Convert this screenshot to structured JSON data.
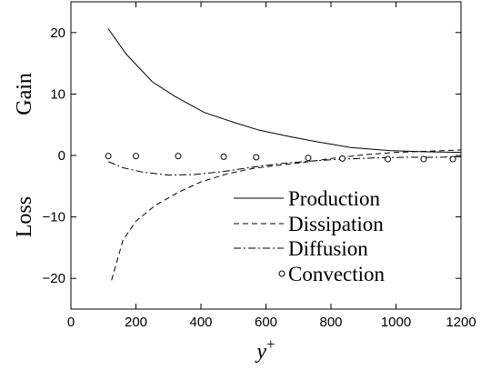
{
  "chart_data": {
    "type": "line",
    "xlabel": "y",
    "xlabel_sup": "+",
    "ylabel_top": "Gain",
    "ylabel_bottom": "Loss",
    "xlim": [
      0,
      1200
    ],
    "ylim": [
      -25,
      25
    ],
    "xticks": [
      0,
      200,
      400,
      600,
      800,
      1000,
      1200
    ],
    "xtick_labels": [
      "0",
      "200",
      "400",
      "600",
      "800",
      "1000",
      "1200"
    ],
    "yticks": [
      -20,
      -10,
      0,
      10,
      20
    ],
    "ytick_labels": [
      "−20",
      "−10",
      "0",
      "10",
      "20"
    ],
    "grid": false,
    "legend_position": "bottom-right",
    "series": [
      {
        "name": "Production",
        "style": "solid",
        "x": [
          115,
          170,
          250,
          320,
          410,
          500,
          580,
          680,
          760,
          860,
          980,
          1080,
          1200
        ],
        "y": [
          20.6,
          16.5,
          12.0,
          9.6,
          7.0,
          5.4,
          4.1,
          3.0,
          2.2,
          1.3,
          0.8,
          0.6,
          0.5
        ]
      },
      {
        "name": "Dissipation",
        "style": "dashed",
        "x": [
          125,
          160,
          200,
          260,
          330,
          400,
          480,
          560,
          640,
          720,
          800,
          900,
          1000,
          1100,
          1200
        ],
        "y": [
          -20.3,
          -13.8,
          -10.7,
          -8.1,
          -6.0,
          -4.3,
          -3.0,
          -2.1,
          -1.6,
          -1.1,
          -0.5,
          0.1,
          0.5,
          0.7,
          0.9
        ]
      },
      {
        "name": "Diffusion",
        "style": "dashdot",
        "x": [
          115,
          160,
          220,
          300,
          380,
          470,
          560,
          650,
          740,
          830,
          930,
          1030,
          1130,
          1200
        ],
        "y": [
          -1.0,
          -2.0,
          -2.7,
          -3.2,
          -3.1,
          -2.6,
          -1.9,
          -1.3,
          -0.9,
          -0.6,
          -0.4,
          -0.3,
          -0.3,
          -0.2
        ]
      },
      {
        "name": "Convection",
        "style": "circles",
        "x": [
          115,
          200,
          330,
          470,
          570,
          730,
          835,
          975,
          1085,
          1175
        ],
        "y": [
          -0.1,
          -0.1,
          -0.1,
          -0.2,
          -0.3,
          -0.4,
          -0.5,
          -0.6,
          -0.6,
          -0.6
        ]
      }
    ]
  }
}
